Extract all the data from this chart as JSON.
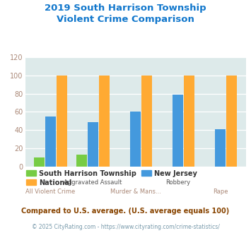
{
  "title": "2019 South Harrison Township\nViolent Crime Comparison",
  "categories": [
    "All Violent Crime",
    "Aggravated Assault",
    "Murder & Mans...",
    "Robbery",
    "Rape"
  ],
  "cat_labels_top": [
    "",
    "Aggravated Assault",
    "",
    "Robbery",
    ""
  ],
  "cat_labels_bot": [
    "All Violent Crime",
    "",
    "Murder & Mans...",
    "",
    "Rape"
  ],
  "series": {
    "South Harrison Township": [
      10,
      13,
      0,
      0,
      0
    ],
    "National": [
      100,
      100,
      100,
      100,
      100
    ],
    "New Jersey": [
      55,
      49,
      60,
      79,
      41
    ]
  },
  "colors": {
    "South Harrison Township": "#77cc44",
    "National": "#ffaa33",
    "New Jersey": "#4499dd"
  },
  "ylim": [
    0,
    120
  ],
  "yticks": [
    0,
    20,
    40,
    60,
    80,
    100,
    120
  ],
  "title_color": "#1177cc",
  "tick_color": "#aa8877",
  "xlabel_top_color": "#555555",
  "xlabel_bot_color": "#aa8877",
  "legend_label_color": "#333333",
  "bg_color": "#ddeaea",
  "fig_bg_color": "#ffffff",
  "footnote1": "Compared to U.S. average. (U.S. average equals 100)",
  "footnote2": "© 2025 CityRating.com - https://www.cityrating.com/crime-statistics/",
  "footnote1_color": "#884400",
  "footnote2_color": "#7799aa"
}
